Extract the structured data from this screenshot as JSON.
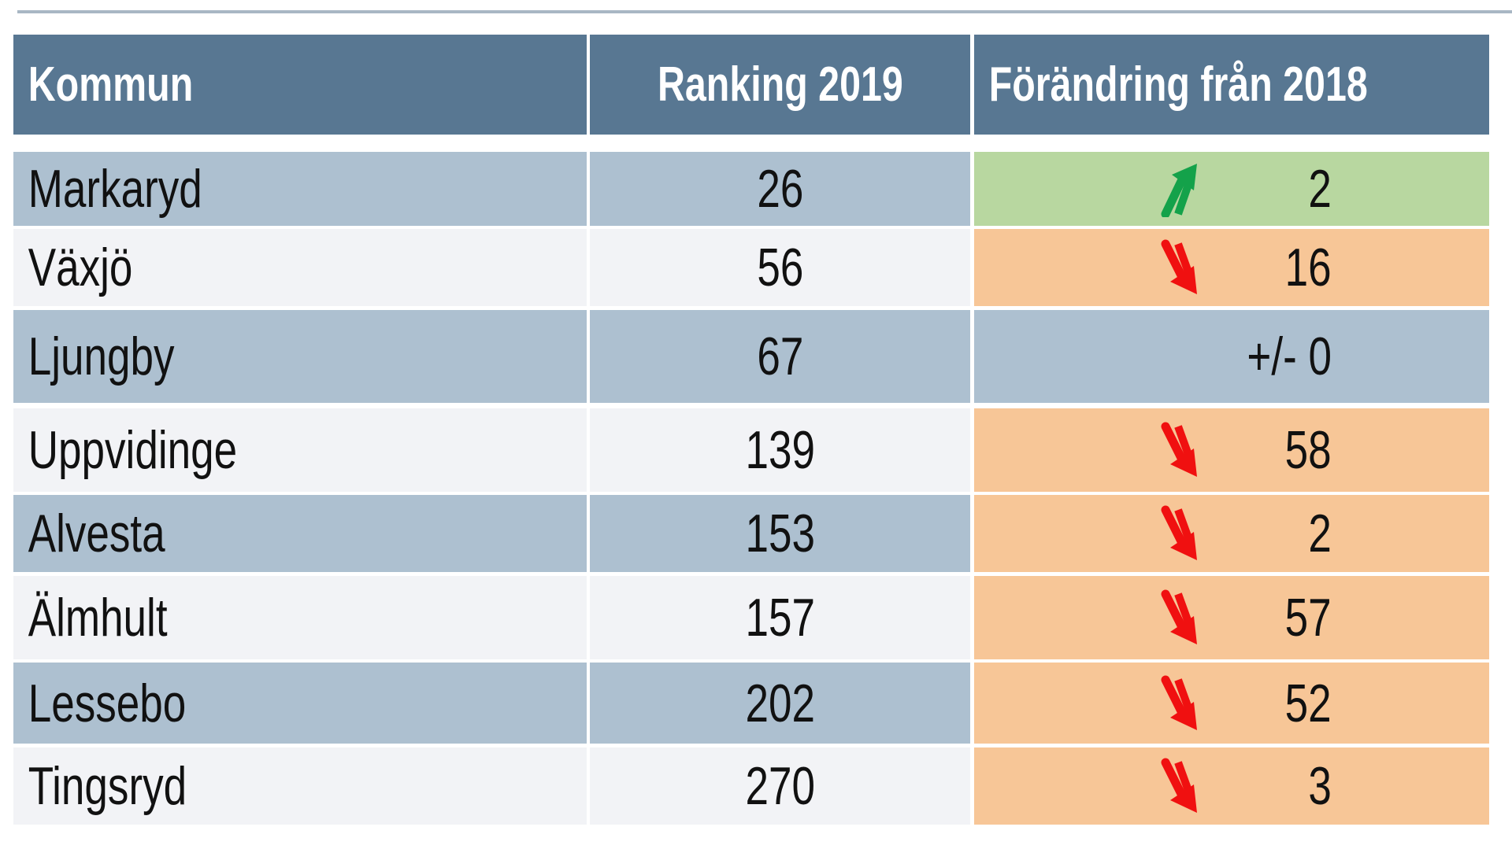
{
  "header": {
    "kommun": "Kommun",
    "ranking": "Ranking 2019",
    "change": "Förändring från 2018"
  },
  "colors": {
    "header": "#587792",
    "row_dark": "#adc0d0",
    "row_light": "#f2f3f6",
    "up": "#b8d7a0",
    "down": "#f7c697",
    "arrow_up": "#14a24a",
    "arrow_down": "#f01010"
  },
  "rows": [
    {
      "kommun": "Markaryd",
      "ranking": "26",
      "change": "2",
      "direction": "up"
    },
    {
      "kommun": "Växjö",
      "ranking": "56",
      "change": "16",
      "direction": "down"
    },
    {
      "kommun": "Ljungby",
      "ranking": "67",
      "change": "+/- 0",
      "direction": "none"
    },
    {
      "kommun": "Uppvidinge",
      "ranking": "139",
      "change": "58",
      "direction": "down"
    },
    {
      "kommun": "Alvesta",
      "ranking": "153",
      "change": "2",
      "direction": "down"
    },
    {
      "kommun": "Älmhult",
      "ranking": "157",
      "change": "57",
      "direction": "down"
    },
    {
      "kommun": "Lessebo",
      "ranking": "202",
      "change": "52",
      "direction": "down"
    },
    {
      "kommun": "Tingsryd",
      "ranking": "270",
      "change": "3",
      "direction": "down"
    }
  ]
}
